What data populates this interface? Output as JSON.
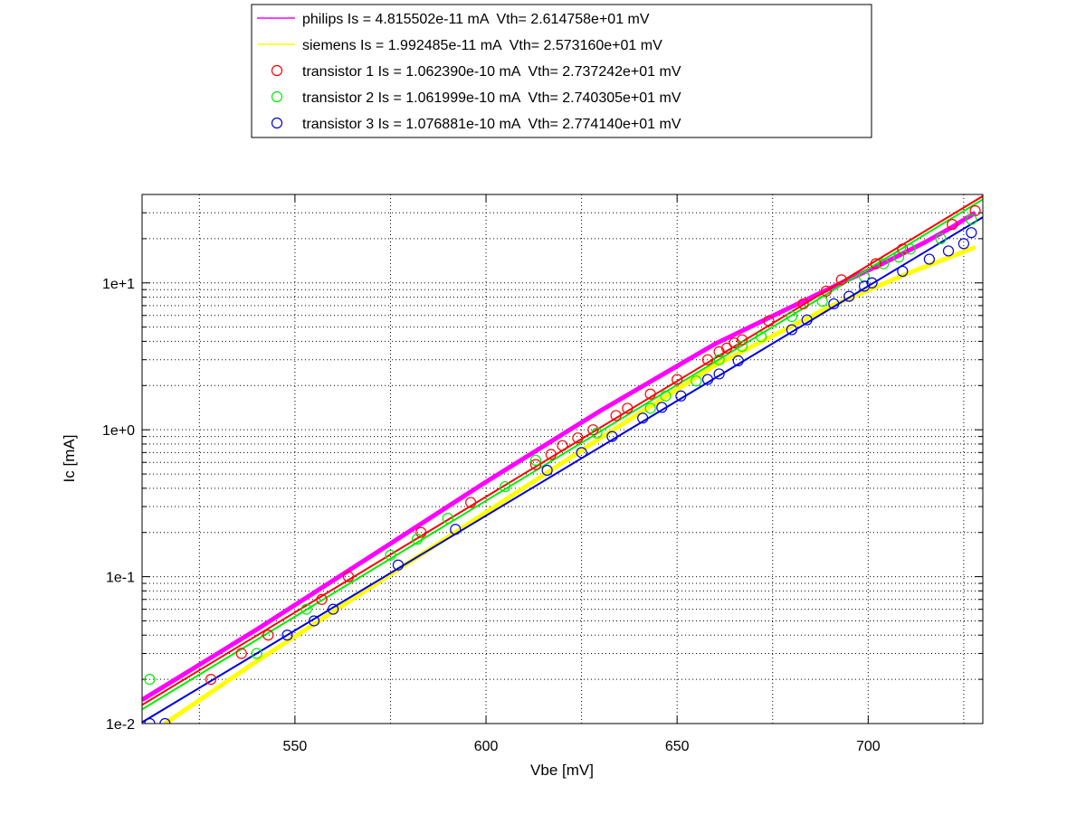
{
  "chart_data": {
    "type": "scatter",
    "title": "",
    "xlabel": "Vbe [mV]",
    "ylabel": "Ic [mA]",
    "xlim": [
      510,
      730
    ],
    "ylim": [
      0.01,
      40
    ],
    "yscale": "log",
    "x_ticks": [
      550,
      600,
      650,
      700
    ],
    "y_ticks": [
      {
        "value": 0.01,
        "label": "1e-2"
      },
      {
        "value": 0.1,
        "label": "1e-1"
      },
      {
        "value": 1,
        "label": "1e+0"
      },
      {
        "value": 10,
        "label": "1e+1"
      }
    ],
    "grid": true,
    "legend_position": "top",
    "series": [
      {
        "name": "philips Is = 4.815502e-11 mA  Vth= 2.614758e+01 mV",
        "kind": "line",
        "color": "#ff00ff",
        "width": 5,
        "x": [
          510,
          540,
          570,
          600,
          630,
          660,
          690,
          705,
          715,
          722,
          728
        ],
        "y": [
          0.0145,
          0.0437,
          0.1385,
          0.442,
          1.35,
          3.85,
          9.2,
          14.0,
          19.0,
          24.0,
          30.0
        ]
      },
      {
        "name": "siemens Is = 1.992485e-11 mA  Vth= 2.573160e+01 mV",
        "kind": "line",
        "color": "#ffff00",
        "width": 5,
        "x": [
          516,
          540,
          570,
          600,
          630,
          660,
          690,
          710,
          728
        ],
        "y": [
          0.01,
          0.0266,
          0.0853,
          0.274,
          0.88,
          2.75,
          6.9,
          11.5,
          17.5
        ]
      },
      {
        "name": "transistor 1 Is = 1.062390e-10 mA  Vth= 2.737242e+01 mV",
        "kind": "scatter+fit",
        "color": "#ff0000",
        "fit_x": [
          510,
          730
        ],
        "fit_y": [
          0.0134,
          39.0
        ],
        "x": [
          528,
          536,
          543,
          557,
          564,
          583,
          596,
          613,
          617,
          620,
          624,
          628,
          634,
          637,
          643,
          650,
          658,
          661,
          663,
          665,
          667,
          674,
          683,
          689,
          693,
          702,
          709,
          722,
          728
        ],
        "y": [
          0.02,
          0.03,
          0.04,
          0.07,
          0.1,
          0.2,
          0.32,
          0.58,
          0.68,
          0.78,
          0.88,
          1.0,
          1.25,
          1.4,
          1.75,
          2.2,
          3.0,
          3.4,
          3.6,
          3.9,
          4.1,
          5.5,
          7.2,
          8.8,
          10.5,
          13.5,
          17.0,
          25.0,
          31.0
        ]
      },
      {
        "name": "transistor 2 Is = 1.061999e-10 mA  Vth= 2.740305e+01 mV",
        "kind": "scatter+fit",
        "color": "#00ee00",
        "fit_x": [
          510,
          730
        ],
        "fit_y": [
          0.0125,
          37.0
        ],
        "x": [
          512,
          540,
          553,
          575,
          582,
          590,
          605,
          613,
          629,
          643,
          647,
          655,
          661,
          667,
          672,
          680,
          688,
          699,
          704,
          708,
          711,
          719,
          727
        ],
        "y": [
          0.02,
          0.03,
          0.06,
          0.14,
          0.18,
          0.25,
          0.41,
          0.62,
          0.95,
          1.4,
          1.7,
          2.15,
          3.0,
          3.7,
          4.3,
          5.9,
          7.5,
          11.0,
          13.5,
          15.0,
          17.0,
          20.0,
          27.0
        ]
      },
      {
        "name": "transistor 3 Is = 1.076881e-10 mA  Vth= 2.774140e+01 mV",
        "kind": "scatter+fit",
        "color": "#0000dd",
        "fit_x": [
          510,
          730
        ],
        "fit_y": [
          0.0102,
          28.0
        ],
        "x": [
          512,
          516,
          548,
          555,
          560,
          577,
          592,
          616,
          625,
          633,
          641,
          646,
          651,
          658,
          661,
          666,
          680,
          684,
          691,
          695,
          699,
          701,
          709,
          716,
          721,
          725,
          727
        ],
        "y": [
          0.01,
          0.01,
          0.04,
          0.05,
          0.06,
          0.12,
          0.21,
          0.53,
          0.7,
          0.9,
          1.2,
          1.42,
          1.7,
          2.2,
          2.4,
          2.95,
          4.8,
          5.6,
          7.2,
          8.1,
          9.5,
          10.0,
          12.0,
          14.5,
          16.5,
          18.5,
          22.0
        ]
      }
    ]
  }
}
